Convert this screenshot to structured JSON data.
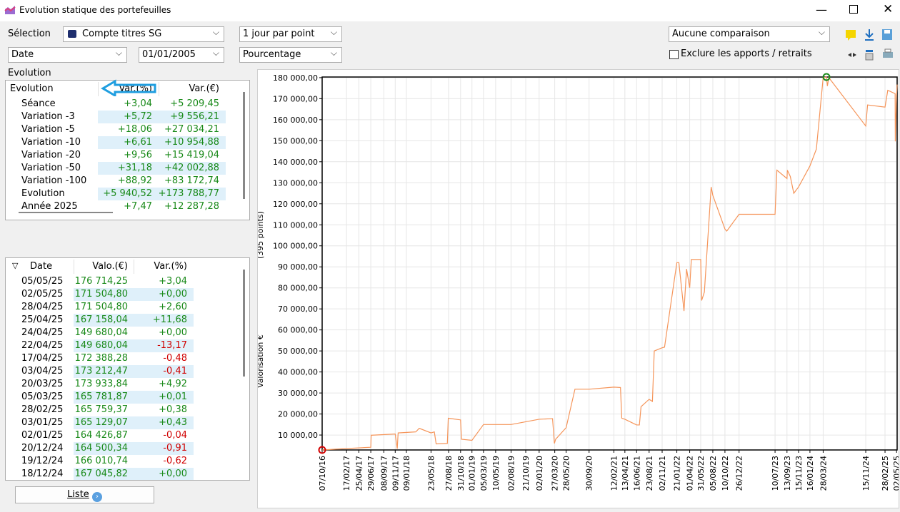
{
  "window": {
    "title": "Evolution statique des portefeuilles"
  },
  "toolbar": {
    "selection_label": "Sélection",
    "account": "Compte titres SG",
    "period": "1 jour par point",
    "comparison": "Aucune comparaison",
    "axis_mode": "Date",
    "start_date": "01/01/2005",
    "scale_mode": "Pourcentage",
    "exclude_label": "Exclure les apports / retraits"
  },
  "evolution_panel": {
    "title": "Evolution",
    "columns": [
      "Evolution",
      "Var.(%)",
      "Var.(€)"
    ],
    "rows": [
      [
        "Séance",
        "+3,04",
        "+5 209,45"
      ],
      [
        "Variation -3",
        "+5,72",
        "+9 556,21"
      ],
      [
        "Variation -5",
        "+18,06",
        "+27 034,21"
      ],
      [
        "Variation -10",
        "+6,61",
        "+10 954,88"
      ],
      [
        "Variation -20",
        "+9,56",
        "+15 419,04"
      ],
      [
        "Variation -50",
        "+31,18",
        "+42 002,88"
      ],
      [
        "Variation -100",
        "+88,92",
        "+83 172,74"
      ],
      [
        "Evolution",
        "+5 940,52",
        "+173 788,77"
      ],
      [
        "Année 2025",
        "+7,47",
        "+12 287,28"
      ]
    ]
  },
  "history_table": {
    "columns": [
      "Date",
      "Valo.(€)",
      "Var.(%)"
    ],
    "rows": [
      [
        "05/05/25",
        "176 714,25",
        "+3,04"
      ],
      [
        "02/05/25",
        "171 504,80",
        "+0,00"
      ],
      [
        "28/04/25",
        "171 504,80",
        "+2,60"
      ],
      [
        "25/04/25",
        "167 158,04",
        "+11,68"
      ],
      [
        "24/04/25",
        "149 680,04",
        "+0,00"
      ],
      [
        "22/04/25",
        "149 680,04",
        "-13,17"
      ],
      [
        "17/04/25",
        "172 388,28",
        "-0,48"
      ],
      [
        "03/04/25",
        "173 212,47",
        "-0,41"
      ],
      [
        "20/03/25",
        "173 933,84",
        "+4,92"
      ],
      [
        "05/03/25",
        "165 781,87",
        "+0,01"
      ],
      [
        "28/02/25",
        "165 759,37",
        "+0,38"
      ],
      [
        "03/01/25",
        "165 129,07",
        "+0,43"
      ],
      [
        "02/01/25",
        "164 426,87",
        "-0,04"
      ],
      [
        "20/12/24",
        "164 500,34",
        "-0,91"
      ],
      [
        "19/12/24",
        "166 010,74",
        "-0,62"
      ],
      [
        "18/12/24",
        "167 045,82",
        "+0,00"
      ]
    ]
  },
  "list_button": "Liste",
  "chart_data": {
    "type": "line",
    "y_label": "Valorisation €",
    "points_label": "(395 points)",
    "x": [
      "07/10/16",
      "01/02/17",
      "29/06/17",
      "01/07/17",
      "09/11/17",
      "20/11/17",
      "25/11/17",
      "01/03/18",
      "20/03/18",
      "23/05/18",
      "10/06/18",
      "20/06/18",
      "20/08/18",
      "25/08/18",
      "31/10/18",
      "05/11/18",
      "01/01/19",
      "05/03/19",
      "02/08/19",
      "02/01/20",
      "15/03/20",
      "25/03/20",
      "01/04/20",
      "28/05/20",
      "15/07/20",
      "30/09/20",
      "12/02/21",
      "20/03/21",
      "27/03/21",
      "13/04/21",
      "16/06/21",
      "01/07/21",
      "10/07/21",
      "23/08/21",
      "10/09/21",
      "20/09/21",
      "02/11/21",
      "15/11/21",
      "21/01/22",
      "01/02/22",
      "01/03/22",
      "15/03/22",
      "01/04/22",
      "10/04/22",
      "31/05/22",
      "05/06/22",
      "20/06/22",
      "27/07/22",
      "05/08/22",
      "10/10/22",
      "20/10/22",
      "26/12/22",
      "10/07/23",
      "20/07/23",
      "13/09/23",
      "15/09/23",
      "01/10/23",
      "20/10/23",
      "15/11/23",
      "16/01/24",
      "20/02/24",
      "28/03/24",
      "15/04/24",
      "20/04/24",
      "28/04/24",
      "15/11/24",
      "25/11/24",
      "28/02/25",
      "15/03/25",
      "24/04/25",
      "25/04/25",
      "02/05/25",
      "05/05/25"
    ],
    "series": [
      {
        "name": "Valorisation",
        "color": "#f5955a",
        "values": [
          2900,
          3500,
          4200,
          9900,
          10500,
          3500,
          11000,
          11500,
          13200,
          11000,
          11500,
          5800,
          6000,
          18000,
          17200,
          8000,
          7500,
          15000,
          15000,
          17500,
          17800,
          6000,
          8000,
          13500,
          31800,
          31800,
          32800,
          32600,
          18000,
          17500,
          14800,
          14800,
          23500,
          27000,
          26000,
          50000,
          51500,
          51800,
          92000,
          92000,
          69000,
          89000,
          80000,
          93500,
          93500,
          74000,
          78000,
          128000,
          124000,
          108000,
          107000,
          115000,
          115000,
          136000,
          132000,
          136000,
          133000,
          125000,
          128000,
          138000,
          146000,
          180000,
          180300,
          176000,
          180000,
          157000,
          167000,
          166000,
          174000,
          172388,
          149680,
          171504,
          176714
        ]
      }
    ],
    "xlim": [
      "07/10/16",
      "05/05/25"
    ],
    "xticks": [
      "07/10/16",
      "17/02/17",
      "25/04/17",
      "29/06/17",
      "08/09/17",
      "09/11/17",
      "09/01/18",
      "23/05/18",
      "27/08/18",
      "31/10/18",
      "01/01/19",
      "05/03/19",
      "10/05/19",
      "02/08/19",
      "21/10/19",
      "02/01/20",
      "27/03/20",
      "28/05/20",
      "30/09/20",
      "12/02/21",
      "13/04/21",
      "16/06/21",
      "23/08/21",
      "02/11/21",
      "21/01/22",
      "01/04/22",
      "31/05/22",
      "05/08/22",
      "10/10/22",
      "26/12/22",
      "10/07/23",
      "13/09/23",
      "15/11/23",
      "16/01/24",
      "28/03/24",
      "15/11/24",
      "28/02/25",
      "02/05/25"
    ],
    "ylim": [
      2900,
      180300
    ],
    "yticks": [
      {
        "value": 10000,
        "label": "10 000,00"
      },
      {
        "value": 20000,
        "label": "20 000,00"
      },
      {
        "value": 30000,
        "label": "30 000,00"
      },
      {
        "value": 40000,
        "label": "40 000,00"
      },
      {
        "value": 50000,
        "label": "50 000,00"
      },
      {
        "value": 60000,
        "label": "60 000,00"
      },
      {
        "value": 70000,
        "label": "70 000,00"
      },
      {
        "value": 80000,
        "label": "80 000,00"
      },
      {
        "value": 90000,
        "label": "90 000,00"
      },
      {
        "value": 100000,
        "label": "100 000,00"
      },
      {
        "value": 110000,
        "label": "110 000,00"
      },
      {
        "value": 120000,
        "label": "120 000,00"
      },
      {
        "value": 130000,
        "label": "130 000,00"
      },
      {
        "value": 140000,
        "label": "140 000,00"
      },
      {
        "value": 150000,
        "label": "150 000,00"
      },
      {
        "value": 160000,
        "label": "160 000,00"
      },
      {
        "value": 170000,
        "label": "170 000,00"
      },
      {
        "value": 180000,
        "label": "180 000,00"
      }
    ],
    "grid": true,
    "min_marker_color": "#d40000",
    "max_marker_color": "#1a8a1a"
  }
}
